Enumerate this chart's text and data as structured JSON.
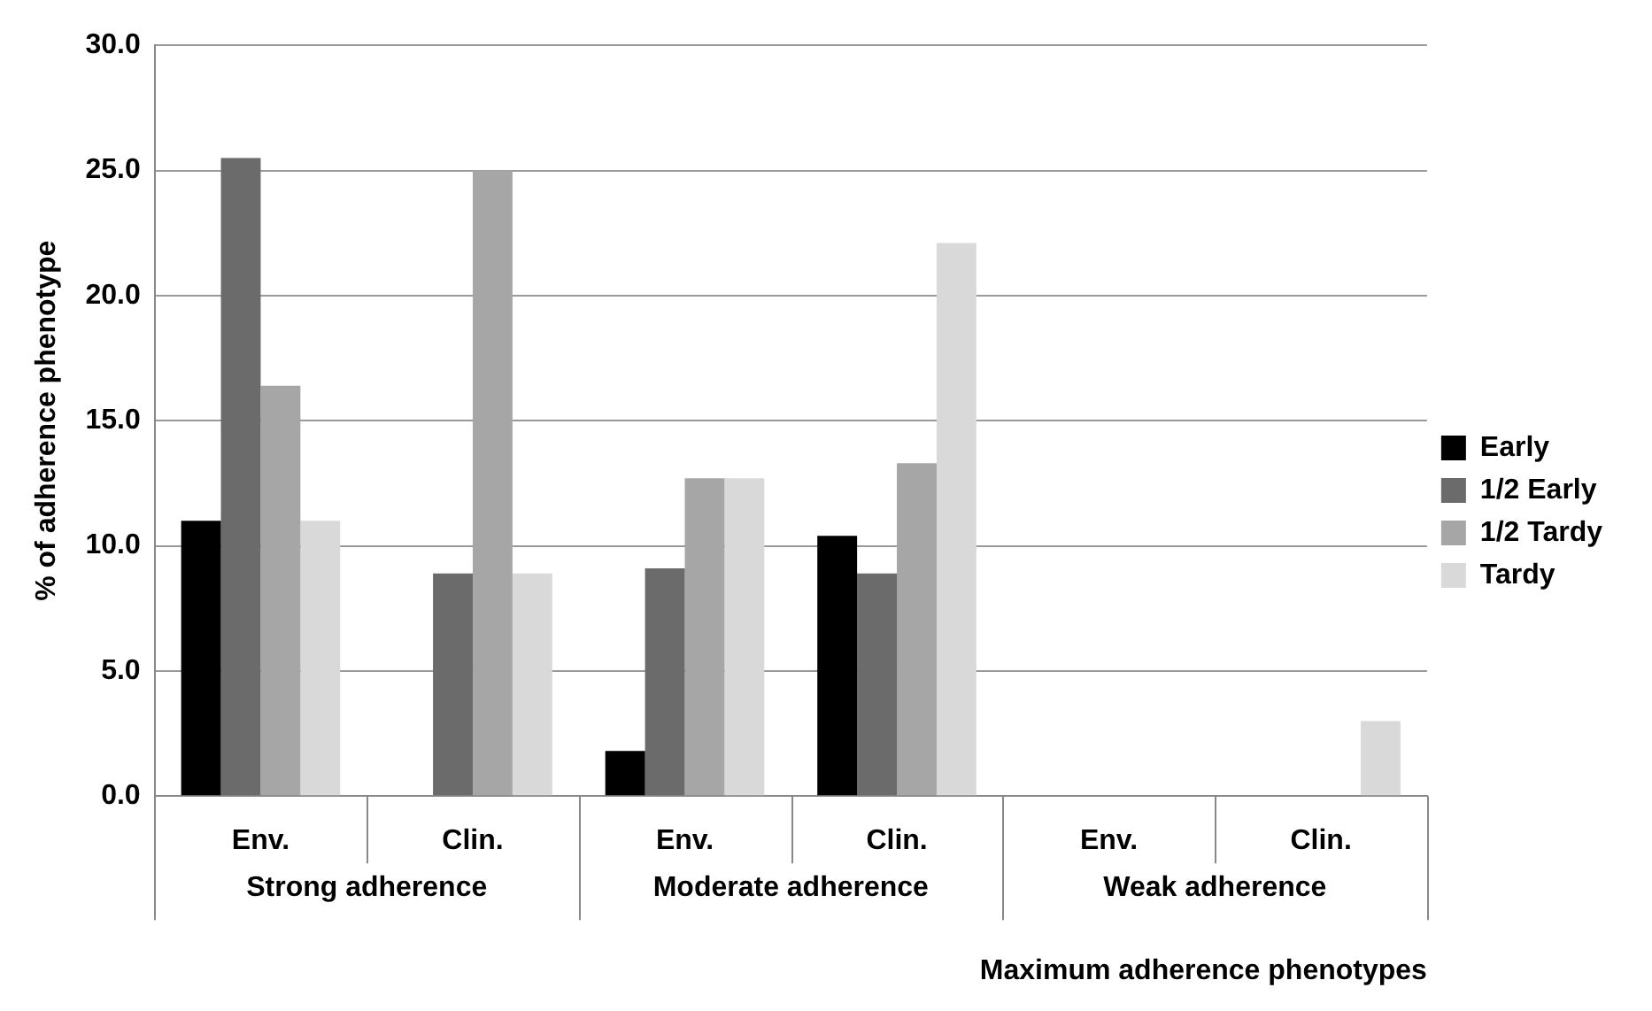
{
  "chart_data": {
    "type": "bar",
    "xlabel": "Maximum adherence phenotypes",
    "ylabel": "% of adherence phenotype",
    "categories": [
      "Env.",
      "Clin.",
      "Env.",
      "Clin.",
      "Env.",
      "Clin."
    ],
    "annotations": [
      "Strong adherence",
      "Moderate adherence",
      "Weak adherence"
    ],
    "series": [
      {
        "name": "Early",
        "color": "#000000",
        "values": [
          11.0,
          0,
          1.8,
          10.4,
          0,
          0
        ]
      },
      {
        "name": "1/2 Early",
        "color": "#6b6b6b",
        "values": [
          25.5,
          8.9,
          9.1,
          8.9,
          0,
          0
        ]
      },
      {
        "name": "1/2 Tardy",
        "color": "#a6a6a6",
        "values": [
          16.4,
          25.0,
          12.7,
          13.3,
          0,
          0
        ]
      },
      {
        "name": "Tardy",
        "color": "#d9d9d9",
        "values": [
          11.0,
          8.9,
          12.7,
          22.1,
          0,
          3.0
        ]
      }
    ],
    "ylim": [
      0,
      30
    ],
    "yticks": [
      {
        "value": 0,
        "label": "0.0"
      },
      {
        "value": 5,
        "label": "5.0"
      },
      {
        "value": 10,
        "label": "10.0"
      },
      {
        "value": 15,
        "label": "15.0"
      },
      {
        "value": 20,
        "label": "20.0"
      },
      {
        "value": 25,
        "label": "25.0"
      },
      {
        "value": 30,
        "label": "30.0"
      }
    ],
    "grid": "y",
    "legend": "right"
  }
}
